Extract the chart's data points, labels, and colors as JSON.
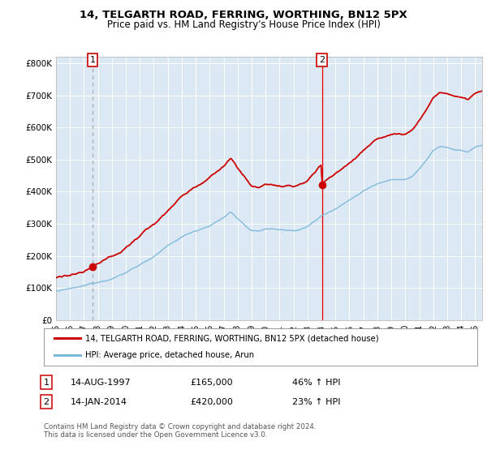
{
  "title1": "14, TELGARTH ROAD, FERRING, WORTHING, BN12 5PX",
  "title2": "Price paid vs. HM Land Registry's House Price Index (HPI)",
  "plot_bg": "#dce9f5",
  "ylim": [
    0,
    820000
  ],
  "yticks": [
    0,
    100000,
    200000,
    300000,
    400000,
    500000,
    600000,
    700000,
    800000
  ],
  "ytick_labels": [
    "£0",
    "£100K",
    "£200K",
    "£300K",
    "£400K",
    "£500K",
    "£600K",
    "£700K",
    "£800K"
  ],
  "sale1_date": 1997.62,
  "sale1_price": 165000,
  "sale2_date": 2014.04,
  "sale2_price": 420000,
  "hpi_color": "#7ab8d9",
  "price_color": "#cc0000",
  "sale1_vline_color": "#aaaaaa",
  "sale1_vline_style": "dashed",
  "sale2_vline_color": "#dd0000",
  "sale2_vline_style": "solid",
  "legend_label1": "14, TELGARTH ROAD, FERRING, WORTHING, BN12 5PX (detached house)",
  "legend_label2": "HPI: Average price, detached house, Arun",
  "table_row1": [
    "1",
    "14-AUG-1997",
    "£165,000",
    "46% ↑ HPI"
  ],
  "table_row2": [
    "2",
    "14-JAN-2014",
    "£420,000",
    "23% ↑ HPI"
  ],
  "footnote": "Contains HM Land Registry data © Crown copyright and database right 2024.\nThis data is licensed under the Open Government Licence v3.0.",
  "xmin": 1995.0,
  "xmax": 2025.5
}
